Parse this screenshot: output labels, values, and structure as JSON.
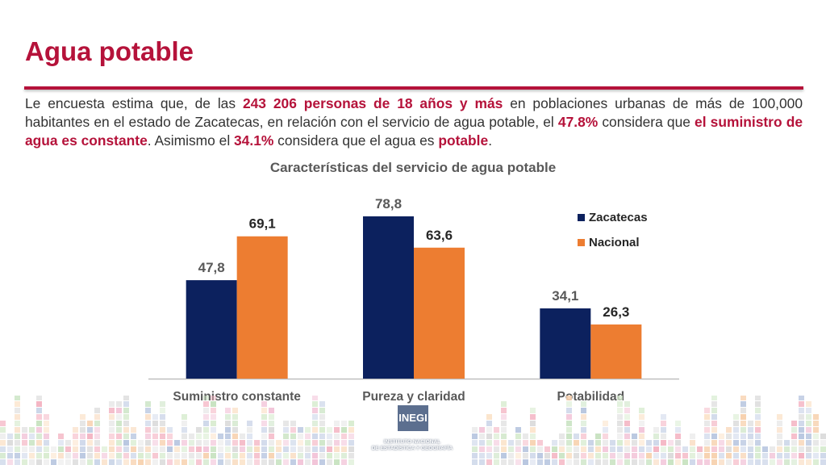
{
  "slide": {
    "title": "Agua potable",
    "intro": {
      "t1": "Le encuesta estima que, de las ",
      "h1": "243 206 personas de 18 años y más",
      "t2": " en poblaciones urbanas de más de 100,000 habitantes en el estado de Zacatecas, en relación con el servicio de agua potable, el ",
      "h2": "47.8%",
      "t3": " considera que ",
      "h3": "el suministro de agua es constante",
      "t4": ". Asimismo el ",
      "h4": "34.1%",
      "t5": " considera que el agua es ",
      "h5": "potable",
      "t6": "."
    }
  },
  "logo": {
    "acronym": "INEGI",
    "name_line1": "INSTITUTO NACIONAL",
    "name_line2": "DE ESTADÍSTICA Y GEOGRAFÍA"
  },
  "colors": {
    "accent": "#b5123a",
    "zacatecas": "#0c215e",
    "nacional": "#ed7d31"
  },
  "chart_data": {
    "type": "bar",
    "title": "Características del servicio de agua potable",
    "categories": [
      "Suministro constante",
      "Pureza y claridad",
      "Potabilidad"
    ],
    "series": [
      {
        "name": "Zacatecas",
        "values": [
          47.8,
          78.8,
          34.1
        ],
        "labels": [
          "47,8",
          "78,8",
          "34,1"
        ],
        "color": "#0c215e"
      },
      {
        "name": "Nacional",
        "values": [
          69.1,
          63.6,
          26.3
        ],
        "labels": [
          "69,1",
          "63,6",
          "26,3"
        ],
        "color": "#ed7d31"
      }
    ],
    "ylim": [
      0,
      80
    ],
    "grid": false,
    "legend": "top-right",
    "xlabel": "",
    "ylabel": ""
  }
}
